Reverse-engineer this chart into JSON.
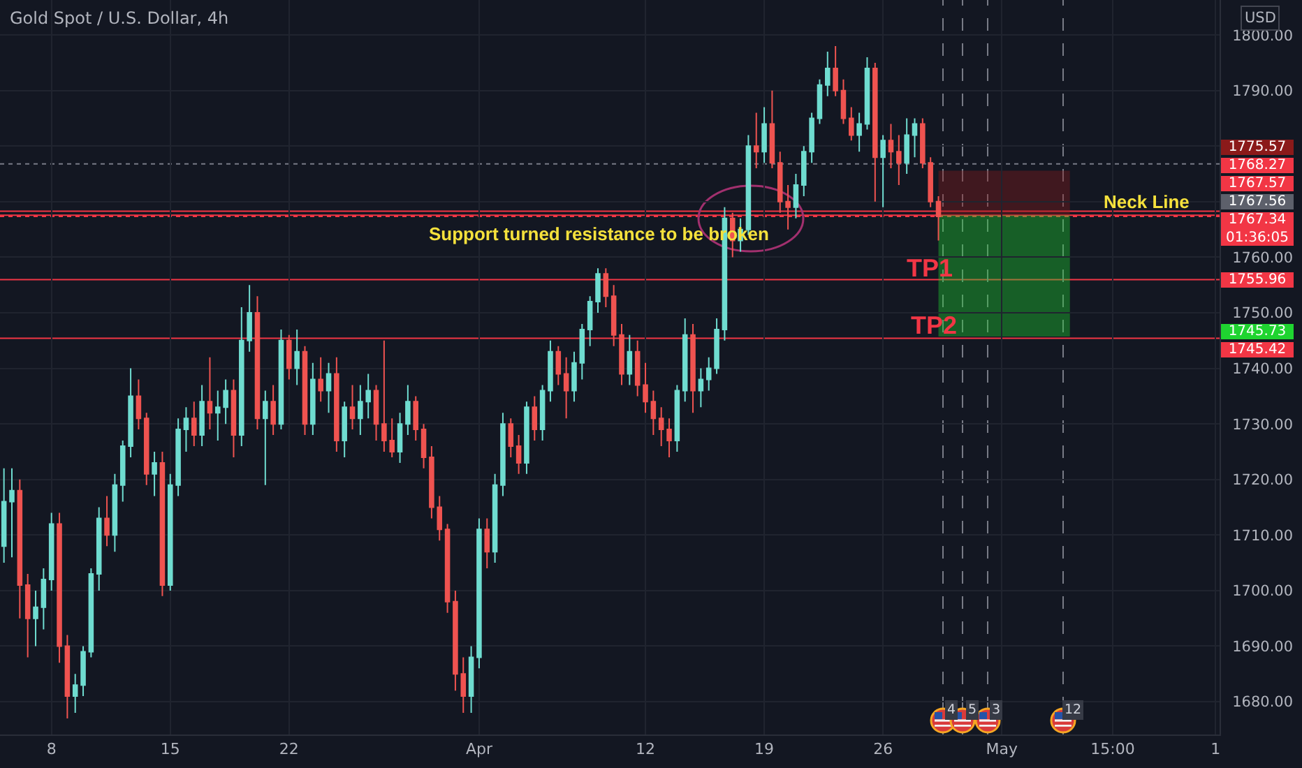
{
  "chart_data": {
    "type": "candlestick",
    "title": "Gold Spot / U.S. Dollar, 4h",
    "ylabel": "USD",
    "categories": [
      null,
      null,
      null,
      null,
      null,
      null,
      "8",
      null,
      null,
      null,
      null,
      null,
      null,
      null,
      null,
      null,
      null,
      null,
      null,
      null,
      null,
      "15",
      null,
      null,
      null,
      null,
      null,
      null,
      null,
      null,
      null,
      null,
      null,
      null,
      null,
      null,
      "22",
      null,
      null,
      null,
      null,
      null,
      null,
      null,
      null,
      null,
      null,
      null,
      null,
      null,
      null,
      null,
      null,
      null,
      null,
      null,
      null,
      null,
      null,
      null,
      "Apr",
      null,
      null,
      null,
      null,
      null,
      null,
      null,
      null,
      null,
      null,
      null,
      null,
      null,
      null,
      null,
      null,
      null,
      null,
      null,
      null,
      "12",
      null,
      null,
      null,
      null,
      null,
      null,
      null,
      null,
      null,
      null,
      null,
      null,
      null,
      null,
      "19",
      null,
      null,
      null,
      null,
      null,
      null,
      null,
      null,
      null,
      null,
      null,
      null,
      null,
      null,
      "26",
      null,
      null,
      null,
      null,
      null,
      null,
      null,
      null,
      null,
      null,
      null,
      null,
      null,
      null,
      "May",
      null,
      null,
      null,
      null,
      null,
      null,
      null,
      null,
      null,
      null,
      null,
      null,
      null,
      "15:00",
      null,
      null,
      null,
      null,
      null,
      null,
      null,
      null,
      null,
      null,
      null,
      null,
      "1"
    ],
    "ylim": [
      1674.1,
      1806.3
    ],
    "yticks": [
      {
        "value": 1680,
        "label": "1680.00"
      },
      {
        "value": 1690,
        "label": "1690.00"
      },
      {
        "value": 1700,
        "label": "1700.00"
      },
      {
        "value": 1710,
        "label": "1710.00"
      },
      {
        "value": 1720,
        "label": "1720.00"
      },
      {
        "value": 1730,
        "label": "1730.00"
      },
      {
        "value": 1740,
        "label": "1740.00"
      },
      {
        "value": 1750,
        "label": "1750.00"
      },
      {
        "value": 1760,
        "label": "1760.00"
      },
      {
        "value": 1770,
        "label": null
      },
      {
        "value": 1780,
        "label": null
      },
      {
        "value": 1790,
        "label": "1790.00"
      },
      {
        "value": 1800,
        "label": "1800.00"
      }
    ],
    "grid": true,
    "series": [
      {
        "ohlc": [
          [
            1708,
            1722,
            1705,
            1716
          ],
          [
            1716,
            1722,
            1706,
            1718
          ],
          [
            1718,
            1720,
            1695,
            1701
          ],
          [
            1701,
            1703,
            1688,
            1695
          ],
          [
            1695,
            1700,
            1690,
            1697
          ],
          [
            1697,
            1704,
            1693,
            1702
          ],
          [
            1702,
            1714,
            1700,
            1712
          ],
          [
            1712,
            1714,
            1687,
            1690
          ],
          [
            1690,
            1692,
            1677,
            1681
          ],
          [
            1681,
            1685,
            1678,
            1683
          ],
          [
            1683,
            1690,
            1681,
            1689
          ],
          [
            1689,
            1704,
            1688,
            1703
          ],
          [
            1703,
            1715,
            1700,
            1713
          ],
          [
            1713,
            1717,
            1708,
            1710
          ],
          [
            1710,
            1721,
            1707,
            1719
          ],
          [
            1719,
            1727,
            1716,
            1726
          ],
          [
            1726,
            1740,
            1724,
            1735
          ],
          [
            1735,
            1738,
            1729,
            1731
          ],
          [
            1731,
            1732,
            1719,
            1721
          ],
          [
            1721,
            1725,
            1717,
            1723
          ],
          [
            1723,
            1725,
            1699,
            1701
          ],
          [
            1701,
            1721,
            1700,
            1719
          ],
          [
            1719,
            1731,
            1717,
            1729
          ],
          [
            1729,
            1733,
            1725,
            1731
          ],
          [
            1731,
            1734,
            1726,
            1728
          ],
          [
            1728,
            1737,
            1726,
            1734
          ],
          [
            1734,
            1742,
            1729,
            1732
          ],
          [
            1732,
            1736,
            1727,
            1733
          ],
          [
            1733,
            1738,
            1730,
            1736
          ],
          [
            1736,
            1738,
            1724,
            1728
          ],
          [
            1728,
            1751,
            1726,
            1745
          ],
          [
            1745,
            1755,
            1743,
            1750
          ],
          [
            1750,
            1753,
            1729,
            1731
          ],
          [
            1731,
            1736,
            1719,
            1734
          ],
          [
            1734,
            1737,
            1728,
            1730
          ],
          [
            1730,
            1747,
            1729,
            1745
          ],
          [
            1745,
            1746,
            1738,
            1740
          ],
          [
            1740,
            1747,
            1737,
            1743
          ],
          [
            1743,
            1744,
            1728,
            1730
          ],
          [
            1730,
            1741,
            1728,
            1738
          ],
          [
            1738,
            1742,
            1734,
            1736
          ],
          [
            1736,
            1741,
            1732,
            1739
          ],
          [
            1739,
            1742,
            1725,
            1727
          ],
          [
            1727,
            1734,
            1724,
            1733
          ],
          [
            1733,
            1737,
            1729,
            1731
          ],
          [
            1731,
            1737,
            1728,
            1734
          ],
          [
            1734,
            1739,
            1731,
            1736
          ],
          [
            1736,
            1737,
            1727,
            1730
          ],
          [
            1730,
            1745,
            1725,
            1727
          ],
          [
            1727,
            1731,
            1724,
            1725
          ],
          [
            1725,
            1732,
            1723,
            1730
          ],
          [
            1730,
            1737,
            1728,
            1734
          ],
          [
            1734,
            1735,
            1727,
            1729
          ],
          [
            1729,
            1730,
            1722,
            1724
          ],
          [
            1724,
            1726,
            1713,
            1715
          ],
          [
            1715,
            1717,
            1709,
            1711
          ],
          [
            1711,
            1712,
            1696,
            1698
          ],
          [
            1698,
            1700,
            1682,
            1685
          ],
          [
            1685,
            1688,
            1678,
            1681
          ],
          [
            1681,
            1690,
            1678,
            1688
          ],
          [
            1688,
            1713,
            1686,
            1711
          ],
          [
            1711,
            1713,
            1704,
            1707
          ],
          [
            1707,
            1721,
            1705,
            1719
          ],
          [
            1719,
            1732,
            1717,
            1730
          ],
          [
            1730,
            1731,
            1724,
            1726
          ],
          [
            1726,
            1728,
            1721,
            1723
          ],
          [
            1723,
            1734,
            1721,
            1733
          ],
          [
            1733,
            1735,
            1727,
            1729
          ],
          [
            1729,
            1737,
            1727,
            1736
          ],
          [
            1736,
            1745,
            1734,
            1743
          ],
          [
            1743,
            1744,
            1737,
            1739
          ],
          [
            1739,
            1742,
            1731,
            1736
          ],
          [
            1736,
            1743,
            1734,
            1741
          ],
          [
            1741,
            1748,
            1738,
            1747
          ],
          [
            1747,
            1753,
            1744,
            1752
          ],
          [
            1752,
            1758,
            1750,
            1757
          ],
          [
            1757,
            1758,
            1751,
            1753
          ],
          [
            1753,
            1755,
            1744,
            1746
          ],
          [
            1746,
            1748,
            1737,
            1739
          ],
          [
            1739,
            1746,
            1737,
            1743
          ],
          [
            1743,
            1745,
            1735,
            1737
          ],
          [
            1737,
            1741,
            1732,
            1734
          ],
          [
            1734,
            1736,
            1728,
            1731
          ],
          [
            1731,
            1733,
            1726,
            1729
          ],
          [
            1729,
            1731,
            1724,
            1727
          ],
          [
            1727,
            1737,
            1725,
            1736
          ],
          [
            1736,
            1749,
            1734,
            1746
          ],
          [
            1746,
            1748,
            1732,
            1736
          ],
          [
            1736,
            1740,
            1733,
            1738
          ],
          [
            1738,
            1742,
            1736,
            1740
          ],
          [
            1740,
            1749,
            1739,
            1747
          ],
          [
            1747,
            1769,
            1745,
            1767
          ],
          [
            1767,
            1768,
            1760,
            1763
          ],
          [
            1763,
            1767,
            1761,
            1765
          ],
          [
            1765,
            1782,
            1764,
            1780
          ],
          [
            1780,
            1786,
            1776,
            1779
          ],
          [
            1779,
            1787,
            1777,
            1784
          ],
          [
            1784,
            1790,
            1776,
            1777
          ],
          [
            1777,
            1779,
            1768,
            1770
          ],
          [
            1770,
            1773,
            1765,
            1769
          ],
          [
            1769,
            1775,
            1767,
            1773
          ],
          [
            1773,
            1780,
            1771,
            1779
          ],
          [
            1779,
            1786,
            1777,
            1785
          ],
          [
            1785,
            1792,
            1784,
            1791
          ],
          [
            1791,
            1797,
            1789,
            1794
          ],
          [
            1794,
            1798,
            1789,
            1790
          ],
          [
            1790,
            1792,
            1784,
            1785
          ],
          [
            1785,
            1787,
            1781,
            1782
          ],
          [
            1782,
            1786,
            1779,
            1784
          ],
          [
            1784,
            1796,
            1783,
            1794
          ],
          [
            1794,
            1795,
            1770,
            1778
          ],
          [
            1778,
            1782,
            1769,
            1781
          ],
          [
            1781,
            1784,
            1776,
            1779
          ],
          [
            1779,
            1782,
            1773,
            1777
          ],
          [
            1777,
            1785,
            1775,
            1782
          ],
          [
            1782,
            1785,
            1778,
            1784
          ],
          [
            1784,
            1785,
            1776,
            1777
          ],
          [
            1777,
            1778,
            1769,
            1770
          ],
          [
            1770,
            1771,
            1763,
            1767.34
          ],
          null,
          null,
          null,
          null,
          null,
          null,
          null,
          null,
          null,
          null,
          null,
          null,
          null,
          null,
          null,
          null,
          null,
          null,
          null,
          null,
          null,
          null,
          null,
          null,
          null,
          null,
          null,
          null,
          null,
          null,
          null,
          null,
          null,
          null,
          null
        ],
        "colors": [
          "#6fdcd0",
          "#6fdcd0",
          "#ef5350",
          "#ef5350",
          "#6fdcd0",
          "#6fdcd0",
          "#6fdcd0",
          "#ef5350",
          "#ef5350",
          "#6fdcd0",
          "#6fdcd0",
          "#6fdcd0",
          "#6fdcd0",
          "#ef5350",
          "#6fdcd0",
          "#6fdcd0",
          "#6fdcd0",
          "#ef5350",
          "#ef5350",
          "#6fdcd0",
          "#ef5350",
          "#6fdcd0",
          "#6fdcd0",
          "#6fdcd0",
          "#ef5350",
          "#6fdcd0",
          "#ef5350",
          "#6fdcd0",
          "#6fdcd0",
          "#ef5350",
          "#6fdcd0",
          "#6fdcd0",
          "#ef5350",
          "#6fdcd0",
          "#ef5350",
          "#6fdcd0",
          "#ef5350",
          "#6fdcd0",
          "#ef5350",
          "#6fdcd0",
          "#ef5350",
          "#6fdcd0",
          "#ef5350",
          "#6fdcd0",
          "#ef5350",
          "#6fdcd0",
          "#6fdcd0",
          "#ef5350",
          "#ef5350",
          "#ef5350",
          "#6fdcd0",
          "#6fdcd0",
          "#ef5350",
          "#ef5350",
          "#ef5350",
          "#ef5350",
          "#ef5350",
          "#ef5350",
          "#ef5350",
          "#6fdcd0",
          "#6fdcd0",
          "#ef5350",
          "#6fdcd0",
          "#6fdcd0",
          "#ef5350",
          "#ef5350",
          "#6fdcd0",
          "#ef5350",
          "#6fdcd0",
          "#6fdcd0",
          "#ef5350",
          "#ef5350",
          "#6fdcd0",
          "#6fdcd0",
          "#6fdcd0",
          "#6fdcd0",
          "#ef5350",
          "#ef5350",
          "#ef5350",
          "#6fdcd0",
          "#ef5350",
          "#ef5350",
          "#ef5350",
          "#ef5350",
          "#ef5350",
          "#6fdcd0",
          "#6fdcd0",
          "#ef5350",
          "#6fdcd0",
          "#6fdcd0",
          "#6fdcd0",
          "#6fdcd0",
          "#ef5350",
          "#6fdcd0",
          "#6fdcd0",
          "#ef5350",
          "#6fdcd0",
          "#ef5350",
          "#ef5350",
          "#ef5350",
          "#6fdcd0",
          "#6fdcd0",
          "#6fdcd0",
          "#6fdcd0",
          "#6fdcd0",
          "#ef5350",
          "#ef5350",
          "#ef5350",
          "#6fdcd0",
          "#6fdcd0",
          "#ef5350",
          "#6fdcd0",
          "#ef5350",
          "#ef5350",
          "#6fdcd0",
          "#6fdcd0",
          "#ef5350",
          "#ef5350",
          "#ef5350",
          null,
          null,
          null,
          null,
          null,
          null,
          null,
          null,
          null,
          null,
          null,
          null,
          null,
          null,
          null,
          null,
          null,
          null,
          null,
          null,
          null,
          null,
          null,
          null,
          null,
          null,
          null,
          null,
          null,
          null,
          null,
          null,
          null,
          null,
          null
        ]
      }
    ],
    "bands": [
      {
        "axis": "y",
        "from": 1767.56,
        "to": 1775.57,
        "color": "#8b1a1a"
      },
      {
        "axis": "y",
        "from": 1767.56,
        "to": 1745.73,
        "color": "#1fd430"
      }
    ],
    "ref_lines": [
      {
        "axis": "y",
        "value": 1776.8,
        "color": "#787b86",
        "line_style": "dotted"
      },
      {
        "axis": "y",
        "value": 1768.27,
        "label": "1768.27",
        "color": "#f23645"
      },
      {
        "axis": "y",
        "value": 1767.57,
        "label": "1767.57",
        "color": "#f23645"
      },
      {
        "axis": "y",
        "value": 1767.34,
        "label": "1767.34\n01:36:05",
        "color": "#f23645",
        "line_style": "dotted"
      },
      {
        "axis": "y",
        "value": 1755.96,
        "label": "1755.96",
        "color": "#f23645"
      },
      {
        "axis": "y",
        "value": 1745.42,
        "label": "1745.42",
        "color": "#f23645"
      }
    ],
    "annotations": [
      "Support turned resistance to be broken",
      "Neck Line",
      "TP1",
      "TP2",
      "4",
      "5",
      "3",
      "12",
      "1775.57",
      "1767.56",
      "1745.73"
    ]
  }
}
